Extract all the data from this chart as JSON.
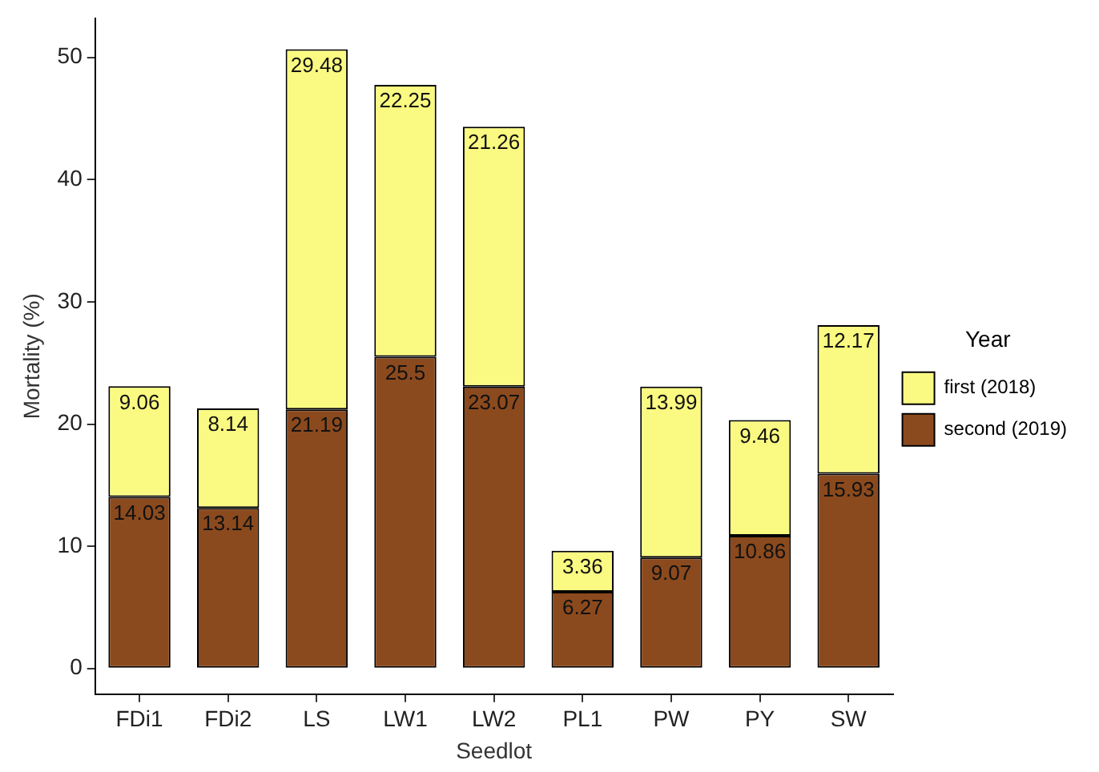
{
  "chart_data": {
    "type": "bar",
    "stacked": true,
    "xlabel": "Seedlot",
    "ylabel": "Mortality (%)",
    "legend_title": "Year",
    "legend": "right",
    "grid": false,
    "data_labels": true,
    "categories": [
      "FDi1",
      "FDi2",
      "LS",
      "LW1",
      "LW2",
      "PL1",
      "PW",
      "PY",
      "SW"
    ],
    "series": [
      {
        "name": "second (2019)",
        "color": "#8b4a1e",
        "values": [
          14.03,
          13.14,
          21.19,
          25.5,
          23.07,
          6.27,
          9.07,
          10.86,
          15.93
        ]
      },
      {
        "name": "first (2018)",
        "color": "#fafa82",
        "values": [
          9.06,
          8.14,
          29.48,
          22.25,
          21.26,
          3.36,
          13.99,
          9.46,
          12.17
        ]
      }
    ],
    "ylim": [
      -2.1,
      53.2
    ],
    "yticks": [
      0,
      10,
      20,
      30,
      40,
      50
    ]
  }
}
